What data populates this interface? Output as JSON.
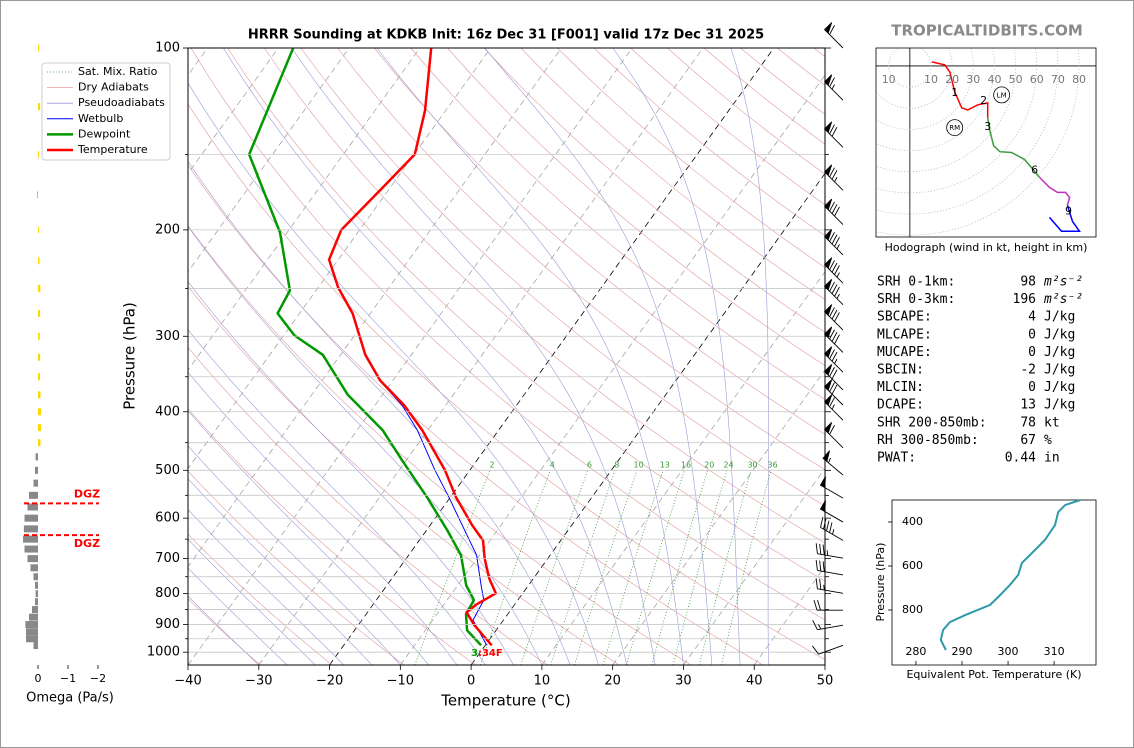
{
  "chart_data": [
    {
      "type": "skewt",
      "title": "HRRR Sounding at KDKB Init: 16z Dec 31 [F001] valid 17z Dec 31 2025",
      "xlabel": "Temperature (°C)",
      "ylabel": "Pressure (hPa)",
      "xlim": [
        -40,
        50
      ],
      "ylim": [
        1050,
        100
      ],
      "xticks": [
        {
          "value": -40,
          "label": "−40"
        },
        {
          "value": -30,
          "label": "−30"
        },
        {
          "value": -20,
          "label": "−20"
        },
        {
          "value": -10,
          "label": "−10"
        },
        0,
        10,
        20,
        30,
        40,
        50
      ],
      "yticks": [
        100,
        200,
        300,
        400,
        500,
        600,
        700,
        800,
        900,
        1000
      ],
      "y_minor_ticks": [
        150,
        250,
        350,
        450,
        550,
        650,
        750,
        850,
        950
      ],
      "grid": true,
      "legend": "upper left",
      "reference_lines": [
        {
          "name": "Sat. Mix. Ratio",
          "color": "#3a9a3a",
          "style": "dotted",
          "labels": [
            2,
            4,
            6,
            8,
            10,
            13,
            16,
            20,
            24,
            30,
            36
          ]
        },
        {
          "name": "Dry Adiabats",
          "color": "#e09a9a",
          "style": "solid"
        },
        {
          "name": "Pseudoadiabats",
          "color": "#9a9ad8",
          "style": "solid"
        }
      ],
      "series": [
        {
          "name": "Wetbulb",
          "color": "#0000ff",
          "width": 1,
          "pressure": [
            974,
            885,
            820,
            775,
            691,
            605,
            554,
            500,
            429,
            390,
            355,
            322
          ],
          "values": [
            0.2,
            -4.3,
            -4.8,
            -6.7,
            -10.4,
            -16.3,
            -20.2,
            -24.9,
            -31.5,
            -36.2,
            -41.9,
            -46.6
          ]
        },
        {
          "name": "Dewpoint",
          "color": "#009900",
          "width": 2.5,
          "pressure": [
            974,
            920,
            865,
            820,
            775,
            691,
            628,
            554,
            481,
            429,
            375,
            322,
            299,
            275,
            252,
            202,
            150,
            100
          ],
          "values": [
            -0.6,
            -4.1,
            -5.9,
            -6.2,
            -8.8,
            -12.6,
            -17.1,
            -23.3,
            -30.6,
            -36.4,
            -44.9,
            -52.5,
            -58.5,
            -63.1,
            -63.7,
            -71.0,
            -83.3,
            -87.9
          ]
        },
        {
          "name": "Temperature",
          "color": "#ff0000",
          "width": 2.5,
          "pressure": [
            974,
            902,
            859,
            833,
            799,
            754,
            700,
            653,
            616,
            554,
            500,
            429,
            390,
            355,
            322,
            275,
            249,
            224,
            200,
            173,
            150,
            127,
            100
          ],
          "values": [
            0.9,
            -3.6,
            -6.0,
            -5.4,
            -3.8,
            -6.3,
            -8.9,
            -11.0,
            -14.1,
            -19.2,
            -23.5,
            -30.8,
            -35.9,
            -41.8,
            -46.5,
            -52.5,
            -57.2,
            -61.3,
            -62.6,
            -61.2,
            -59.9,
            -62.9,
            -68.4
          ]
        }
      ],
      "surface_labels": [
        {
          "text": "3",
          "color": "#00a000"
        },
        {
          "text": ":34F",
          "color": "#ff0000"
        }
      ],
      "wind_barbs": {
        "pressure": [
          100,
          122,
          146,
          172,
          196,
          220,
          245,
          266,
          293,
          319,
          344,
          368,
          390,
          413,
          459,
          509,
          556,
          609,
          653,
          699,
          745,
          799,
          852,
          902,
          974
        ],
        "speed": [
          60,
          65,
          70,
          75,
          80,
          85,
          85,
          85,
          80,
          80,
          75,
          70,
          70,
          65,
          60,
          55,
          50,
          50,
          45,
          35,
          30,
          25,
          20,
          15,
          10
        ],
        "direction": [
          315,
          315,
          315,
          315,
          315,
          315,
          315,
          315,
          315,
          315,
          315,
          315,
          315,
          315,
          315,
          310,
          300,
          300,
          300,
          280,
          280,
          280,
          270,
          260,
          250
        ]
      }
    },
    {
      "type": "omega",
      "xlabel": "Omega (Pa/s)",
      "xlim": [
        0.5,
        -2.1
      ],
      "xticks": [
        0,
        {
          "value": -1,
          "label": "−1"
        },
        {
          "value": -2,
          "label": "−2"
        }
      ],
      "positive_color": "#888888",
      "negative_color": "#ffd700",
      "pressure": [
        975,
        950,
        925,
        900,
        875,
        850,
        825,
        800,
        775,
        750,
        725,
        700,
        675,
        650,
        625,
        600,
        575,
        550,
        525,
        500,
        475,
        450,
        425,
        400,
        375,
        350,
        325,
        300,
        275,
        250,
        225,
        200,
        175,
        150,
        125,
        100
      ],
      "values": [
        0.15,
        0.4,
        0.4,
        0.42,
        0.3,
        0.2,
        0.1,
        0.08,
        0.1,
        0.15,
        0.25,
        0.35,
        0.45,
        0.5,
        0.47,
        0.45,
        0.35,
        0.3,
        0.15,
        0.1,
        0.08,
        -0.08,
        -0.1,
        -0.1,
        -0.08,
        -0.07,
        -0.07,
        -0.06,
        -0.07,
        -0.08,
        -0.05,
        -0.03,
        0.02,
        -0.03,
        -0.07,
        -0.03
      ],
      "dgz": [
        {
          "pressure": 567,
          "label": "DGZ"
        },
        {
          "pressure": 640,
          "label": "DGZ"
        }
      ]
    },
    {
      "type": "hodograph",
      "title": "Hodograph (wind in kt, height in km)",
      "xlim": [
        -16,
        88
      ],
      "ylim": [
        -81,
        8.5
      ],
      "rings": [
        {
          "value": -10,
          "label": "10"
        },
        10,
        20,
        30,
        40,
        50,
        60,
        70,
        80
      ],
      "series": [
        {
          "color": "#ff0000",
          "u": [
            10.4,
            16.5,
            18.9,
            21.2,
            24.5,
            27.4,
            32.1,
            36.8,
            36.8
          ],
          "v": [
            1.9,
            0.5,
            -2.8,
            -12.3,
            -19.8,
            -20.8,
            -18.4,
            -17.5,
            -24.5
          ]
        },
        {
          "color": "#3c9a3c",
          "u": [
            36.8,
            37.7,
            39.6,
            42.5,
            48.1,
            54.2,
            57.5,
            61.3
          ],
          "v": [
            -24.5,
            -30.2,
            -37.7,
            -40.6,
            -41.0,
            -44.3,
            -48.1,
            -52.8
          ]
        },
        {
          "color": "#c030c0",
          "u": [
            61.3,
            66.0,
            69.8,
            73.6,
            75.5,
            74.5
          ],
          "v": [
            -52.8,
            -57.5,
            -59.9,
            -59.9,
            -62.3,
            -66.0
          ]
        },
        {
          "color": "#0000ff",
          "u": [
            74.5,
            76.9,
            80.2,
            71.7,
            66.0
          ],
          "v": [
            -66.0,
            -73.6,
            -78.3,
            -78.3,
            -71.7
          ]
        }
      ],
      "height_markers": [
        {
          "label": "1",
          "u": 21.2,
          "v": -12.7
        },
        {
          "label": "2",
          "u": 34.9,
          "v": -16.5
        },
        {
          "label": "3",
          "u": 36.8,
          "v": -28.8
        },
        {
          "label": "6",
          "u": 59.0,
          "v": -49.5
        },
        {
          "label": "9",
          "u": 75.0,
          "v": -68.9
        }
      ],
      "storm_motion": [
        {
          "label": "LM",
          "u": 43.4,
          "v": -13.7
        },
        {
          "label": "RM",
          "u": 21.2,
          "v": -29.2
        }
      ]
    },
    {
      "type": "line",
      "xlabel": "Equivalent Pot. Temperature (K)",
      "ylabel": "Pressure (hPa)",
      "xlim": [
        274.8,
        319.1
      ],
      "ylim": [
        1050,
        300
      ],
      "xticks": [
        280,
        290,
        300,
        310
      ],
      "yticks": [
        400,
        600,
        800
      ],
      "series": [
        {
          "color": "#2e9aa8",
          "x": [
            286.5,
            285.4,
            285.9,
            287.4,
            290.7,
            296.1,
            298.3,
            300.4,
            302.2,
            303.0,
            305.2,
            308.0,
            310.2,
            310.9,
            312.4,
            315.7
          ],
          "values": [
            982,
            936,
            891,
            855,
            823,
            777,
            732,
            686,
            641,
            586,
            541,
            482,
            414,
            355,
            323,
            300
          ]
        }
      ]
    }
  ],
  "watermark": "TROPICALTIDBITS.COM",
  "stats": [
    {
      "label": "SRH 0-1km:",
      "value": 98,
      "unit": "m²s⁻²",
      "color": "#000000"
    },
    {
      "label": "SRH 0-3km:",
      "value": 196,
      "unit": "m²s⁻²",
      "color": "#000000"
    },
    {
      "label": "SBCAPE:",
      "value": 4,
      "unit": "J/kg",
      "color": "#d03030"
    },
    {
      "label": "MLCAPE:",
      "value": 0,
      "unit": "J/kg",
      "color": "#000000"
    },
    {
      "label": "MUCAPE:",
      "value": 0,
      "unit": "J/kg",
      "color": "#000000"
    },
    {
      "label": "SBCIN:",
      "value": -2,
      "unit": "J/kg",
      "color": "#3030d0"
    },
    {
      "label": "MLCIN:",
      "value": 0,
      "unit": "J/kg",
      "color": "#000000"
    },
    {
      "label": "DCAPE:",
      "value": 13,
      "unit": "J/kg",
      "color": "#3030d0"
    },
    {
      "label": "SHR 200-850mb:",
      "value": 78,
      "unit": "kt",
      "color": "#a02828"
    },
    {
      "label": "RH 300-850mb:",
      "value": 67,
      "unit": "%",
      "color": "#000000"
    },
    {
      "label": "PWAT:",
      "value": 0.44,
      "unit": "in",
      "color": "#000000"
    }
  ]
}
